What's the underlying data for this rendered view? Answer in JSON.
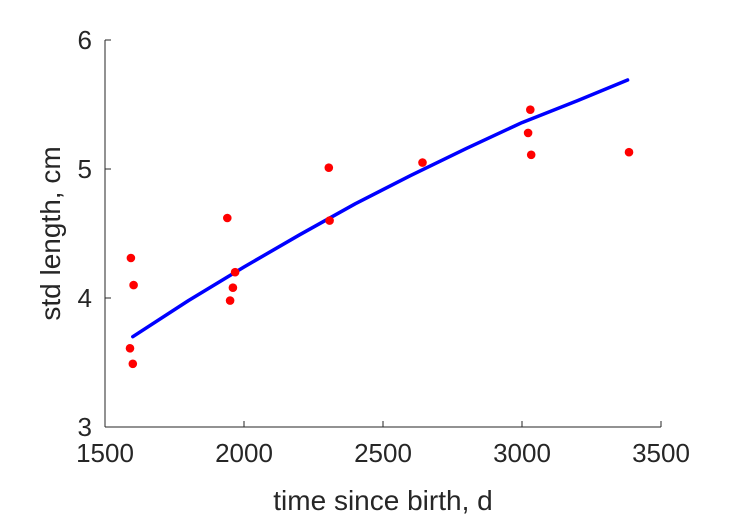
{
  "chart_data": {
    "type": "scatter",
    "xlabel": "time since birth, d",
    "ylabel": "std length, cm",
    "xlim": [
      1500,
      3500
    ],
    "ylim": [
      3,
      6
    ],
    "xticks": [
      1500,
      2000,
      2500,
      3000,
      3500
    ],
    "yticks": [
      3,
      4,
      5,
      6
    ],
    "grid": false,
    "series": [
      {
        "type": "scatter",
        "color": "#ff0000",
        "points": [
          {
            "x": 1590,
            "y": 3.61
          },
          {
            "x": 1600,
            "y": 3.49
          },
          {
            "x": 1593,
            "y": 4.31
          },
          {
            "x": 1603,
            "y": 4.1
          },
          {
            "x": 1940,
            "y": 4.62
          },
          {
            "x": 1950,
            "y": 3.98
          },
          {
            "x": 1960,
            "y": 4.08
          },
          {
            "x": 1968,
            "y": 4.2
          },
          {
            "x": 2305,
            "y": 5.01
          },
          {
            "x": 2308,
            "y": 4.6
          },
          {
            "x": 2642,
            "y": 5.05
          },
          {
            "x": 3022,
            "y": 5.28
          },
          {
            "x": 3030,
            "y": 5.46
          },
          {
            "x": 3033,
            "y": 5.11
          },
          {
            "x": 3385,
            "y": 5.13
          }
        ]
      },
      {
        "type": "line",
        "color": "#0000ff",
        "points": [
          {
            "x": 1600,
            "y": 3.7
          },
          {
            "x": 1800,
            "y": 3.98
          },
          {
            "x": 2000,
            "y": 4.24
          },
          {
            "x": 2200,
            "y": 4.49
          },
          {
            "x": 2400,
            "y": 4.73
          },
          {
            "x": 2600,
            "y": 4.95
          },
          {
            "x": 2800,
            "y": 5.16
          },
          {
            "x": 3000,
            "y": 5.36
          },
          {
            "x": 3200,
            "y": 5.53
          },
          {
            "x": 3380,
            "y": 5.69
          }
        ]
      }
    ]
  }
}
